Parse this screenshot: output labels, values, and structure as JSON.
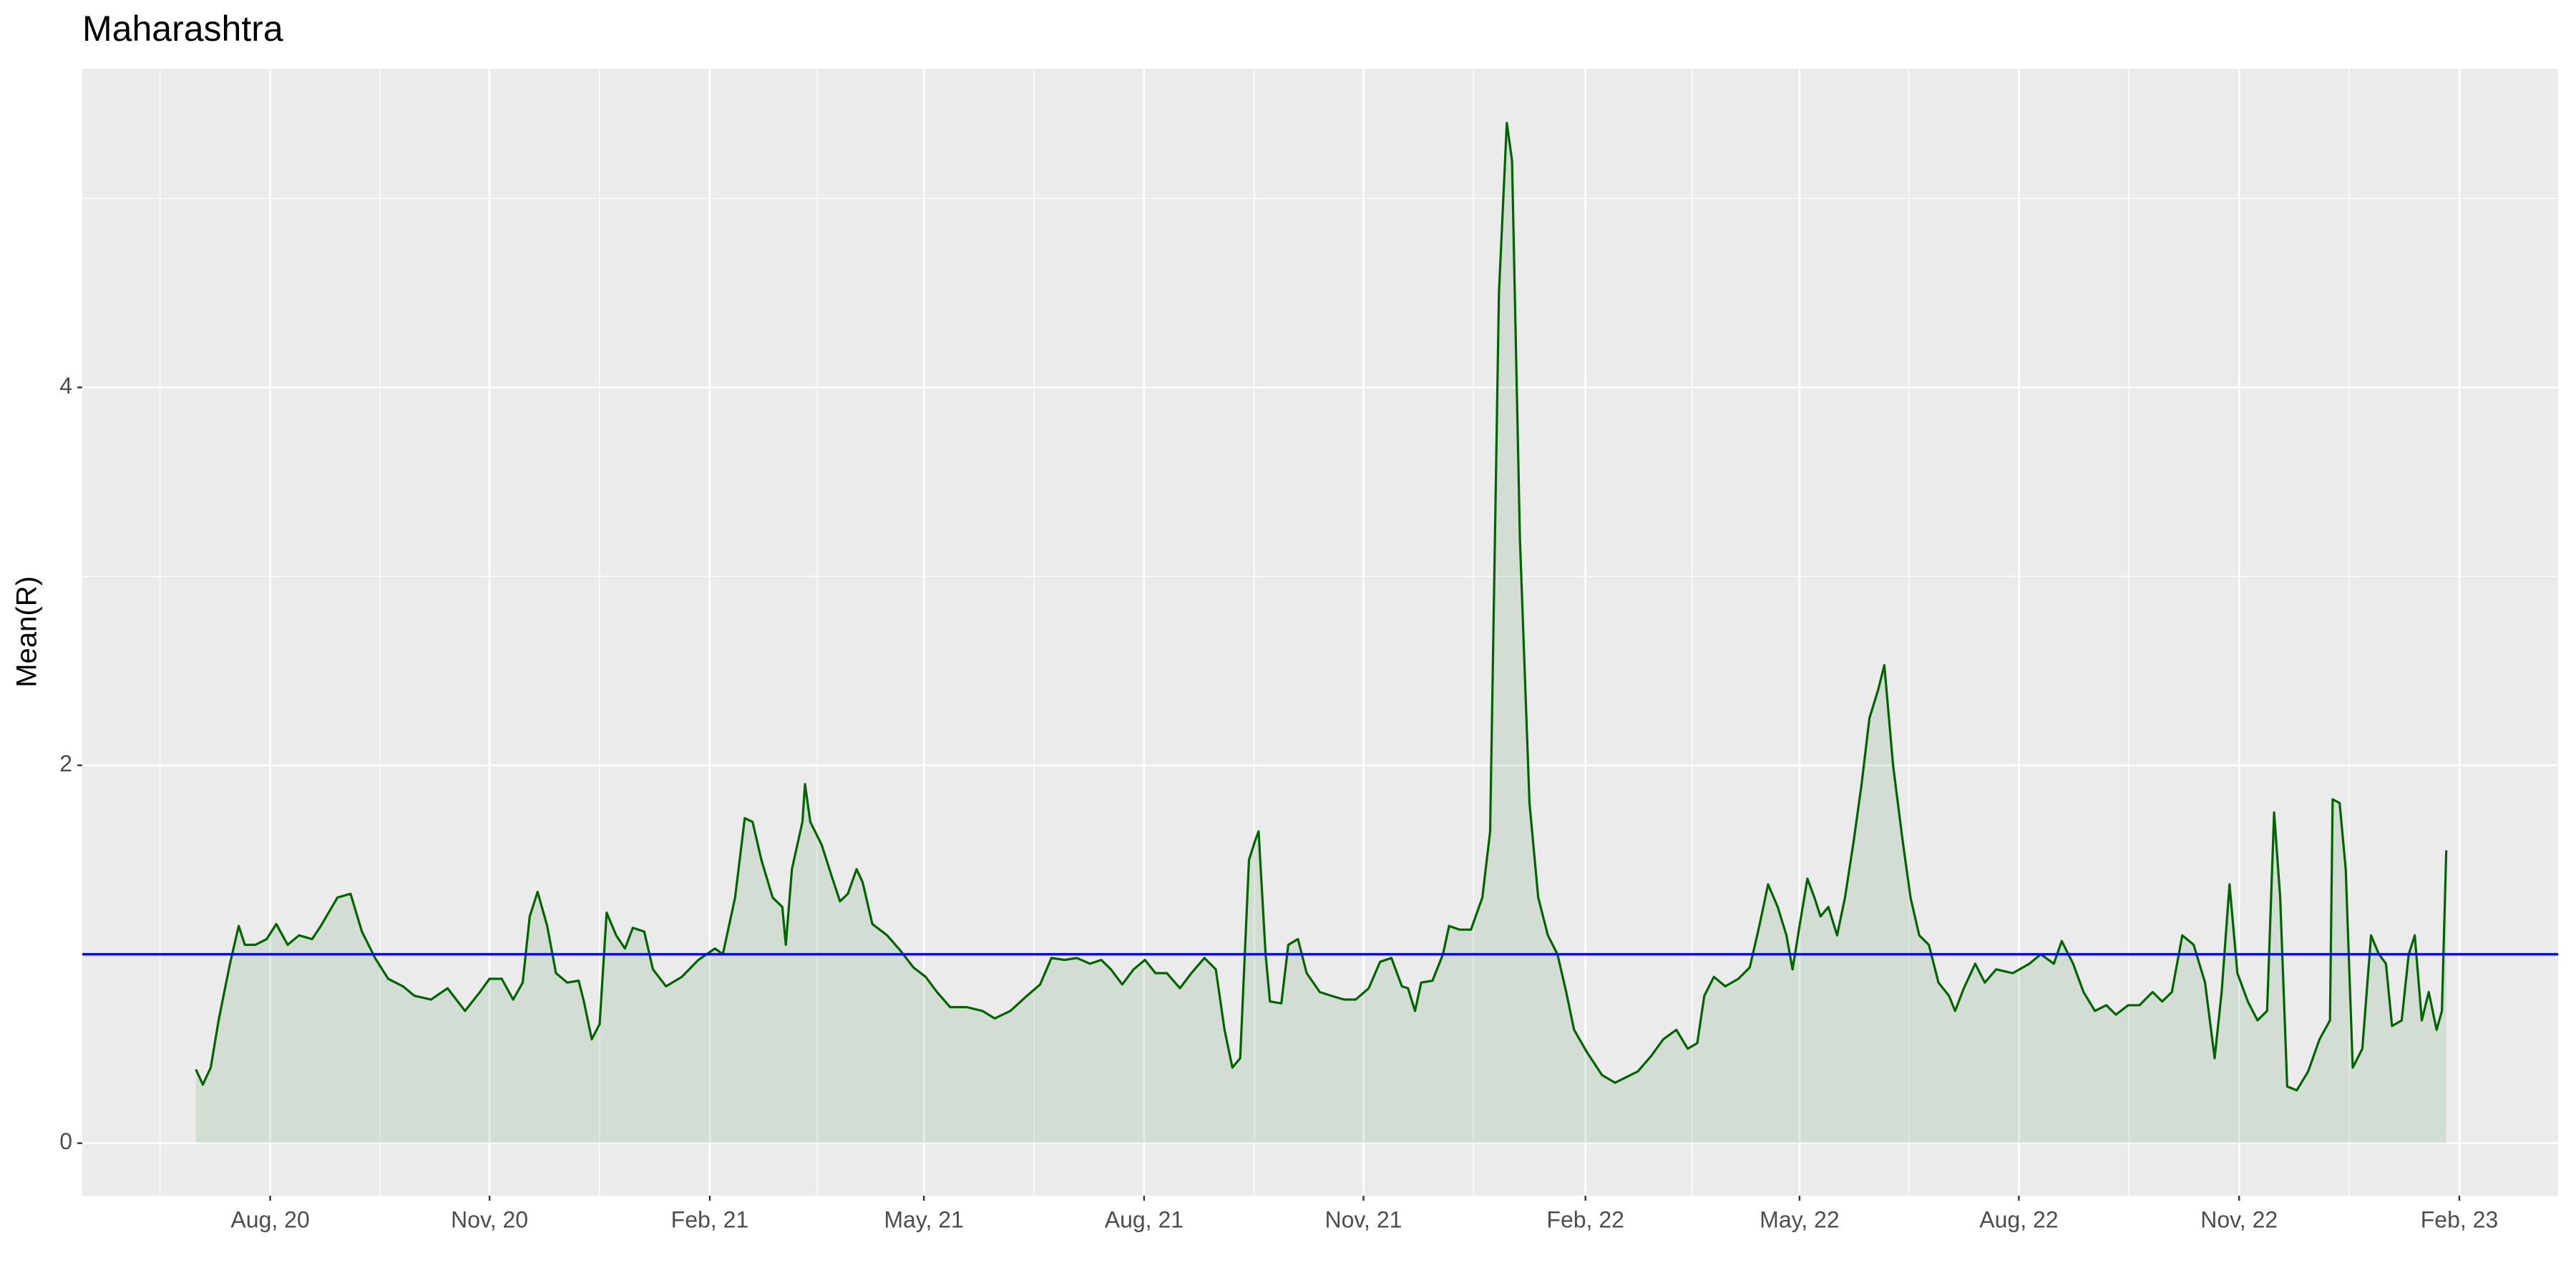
{
  "chart_data": {
    "type": "area",
    "title": "Maharashtra",
    "ylabel": "Mean(R)",
    "color": "#006400",
    "grid": true,
    "hline": {
      "value": 1,
      "color": "#0000ff"
    },
    "xlim": [
      2020.37,
      2023.203
    ],
    "ylim": [
      -0.278,
      5.687
    ],
    "xticks": [
      {
        "value": 2020.585,
        "label": "Aug, 20"
      },
      {
        "value": 2020.836,
        "label": "Nov, 20"
      },
      {
        "value": 2021.088,
        "label": "Feb, 21"
      },
      {
        "value": 2021.333,
        "label": "May, 21"
      },
      {
        "value": 2021.585,
        "label": "Aug, 21"
      },
      {
        "value": 2021.836,
        "label": "Nov, 21"
      },
      {
        "value": 2022.09,
        "label": "Feb, 22"
      },
      {
        "value": 2022.335,
        "label": "May, 22"
      },
      {
        "value": 2022.586,
        "label": "Aug, 22"
      },
      {
        "value": 2022.838,
        "label": "Nov, 22"
      },
      {
        "value": 2023.09,
        "label": "Feb, 23"
      }
    ],
    "xminor": [
      2020.459,
      2020.711,
      2020.962,
      2021.211,
      2021.459,
      2021.711,
      2021.962,
      2022.212,
      2022.46,
      2022.712,
      2022.964
    ],
    "yticks": [
      0,
      2,
      4
    ],
    "yminor": [
      1,
      3,
      5
    ],
    "x": [
      2020.5,
      2020.508,
      2020.517,
      2020.526,
      2020.539,
      2020.549,
      2020.556,
      2020.568,
      2020.581,
      2020.592,
      2020.605,
      2020.618,
      2020.633,
      2020.643,
      2020.662,
      2020.677,
      2020.69,
      2020.705,
      2020.72,
      2020.737,
      2020.75,
      2020.769,
      2020.788,
      2020.808,
      2020.825,
      2020.836,
      2020.85,
      2020.863,
      2020.874,
      2020.882,
      2020.891,
      2020.902,
      2020.912,
      2020.925,
      2020.938,
      2020.944,
      2020.953,
      2020.962,
      2020.97,
      2020.981,
      2020.991,
      2021.0,
      2021.013,
      2021.023,
      2021.038,
      2021.056,
      2021.075,
      2021.094,
      2021.103,
      2021.117,
      2021.128,
      2021.137,
      2021.147,
      2021.16,
      2021.171,
      2021.175,
      2021.182,
      2021.194,
      2021.197,
      2021.203,
      2021.216,
      2021.227,
      2021.237,
      2021.246,
      2021.256,
      2021.263,
      2021.274,
      2021.291,
      2021.306,
      2021.321,
      2021.335,
      2021.348,
      2021.363,
      2021.382,
      2021.4,
      2021.414,
      2021.432,
      2021.451,
      2021.466,
      2021.479,
      2021.494,
      2021.508,
      2021.523,
      2021.536,
      2021.547,
      2021.56,
      2021.573,
      2021.586,
      2021.598,
      2021.611,
      2021.626,
      2021.639,
      2021.654,
      2021.667,
      2021.677,
      2021.686,
      2021.695,
      2021.705,
      2021.712,
      2021.716,
      2021.724,
      2021.729,
      2021.742,
      2021.75,
      2021.761,
      2021.771,
      2021.786,
      2021.799,
      2021.814,
      2021.827,
      2021.842,
      2021.855,
      2021.868,
      2021.88,
      2021.887,
      2021.895,
      2021.902,
      2021.915,
      2021.927,
      2021.934,
      2021.946,
      2021.959,
      2021.972,
      2021.981,
      2021.991,
      2022.0,
      2022.006,
      2022.015,
      2022.026,
      2022.036,
      2022.047,
      2022.058,
      2022.068,
      2022.077,
      2022.092,
      2022.109,
      2022.124,
      2022.137,
      2022.15,
      2022.165,
      2022.179,
      2022.194,
      2022.207,
      2022.218,
      2022.226,
      2022.237,
      2022.25,
      2022.265,
      2022.278,
      2022.289,
      2022.299,
      2022.31,
      2022.32,
      2022.327,
      2022.335,
      2022.344,
      2022.352,
      2022.359,
      2022.368,
      2022.378,
      2022.387,
      2022.397,
      2022.406,
      2022.415,
      2022.425,
      2022.432,
      2022.442,
      2022.453,
      2022.462,
      2022.472,
      2022.483,
      2022.494,
      2022.506,
      2022.513,
      2022.523,
      2022.536,
      2022.547,
      2022.56,
      2022.579,
      2022.598,
      2022.611,
      2022.626,
      2022.635,
      2022.648,
      2022.66,
      2022.673,
      2022.686,
      2022.697,
      2022.711,
      2022.724,
      2022.739,
      2022.75,
      2022.761,
      2022.773,
      2022.786,
      2022.799,
      2022.81,
      2022.818,
      2022.827,
      2022.836,
      2022.848,
      2022.859,
      2022.87,
      2022.878,
      2022.885,
      2022.893,
      2022.904,
      2022.917,
      2022.93,
      2022.942,
      2022.945,
      2022.953,
      2022.96,
      2022.968,
      2022.979,
      2022.989,
      2022.998,
      2023.006,
      2023.013,
      2023.024,
      2023.032,
      2023.039,
      2023.047,
      2023.055,
      2023.064,
      2023.07,
      2023.075
    ],
    "values": [
      0.39,
      0.31,
      0.4,
      0.65,
      0.95,
      1.15,
      1.05,
      1.05,
      1.08,
      1.16,
      1.05,
      1.1,
      1.08,
      1.15,
      1.3,
      1.32,
      1.12,
      0.98,
      0.87,
      0.83,
      0.78,
      0.76,
      0.82,
      0.7,
      0.8,
      0.87,
      0.87,
      0.76,
      0.85,
      1.2,
      1.33,
      1.15,
      0.9,
      0.85,
      0.86,
      0.75,
      0.55,
      0.63,
      1.22,
      1.1,
      1.03,
      1.14,
      1.12,
      0.92,
      0.83,
      0.88,
      0.97,
      1.03,
      1.0,
      1.3,
      1.72,
      1.7,
      1.5,
      1.3,
      1.25,
      1.05,
      1.45,
      1.7,
      1.9,
      1.7,
      1.58,
      1.42,
      1.28,
      1.32,
      1.45,
      1.38,
      1.16,
      1.1,
      1.02,
      0.93,
      0.88,
      0.8,
      0.72,
      0.72,
      0.7,
      0.66,
      0.7,
      0.78,
      0.84,
      0.98,
      0.97,
      0.98,
      0.95,
      0.97,
      0.92,
      0.84,
      0.92,
      0.97,
      0.9,
      0.9,
      0.82,
      0.9,
      0.98,
      0.92,
      0.6,
      0.4,
      0.45,
      1.5,
      1.6,
      1.65,
      1.0,
      0.75,
      0.74,
      1.05,
      1.08,
      0.9,
      0.8,
      0.78,
      0.76,
      0.76,
      0.82,
      0.96,
      0.98,
      0.83,
      0.82,
      0.7,
      0.85,
      0.86,
      1.0,
      1.15,
      1.13,
      1.13,
      1.3,
      1.65,
      4.5,
      5.4,
      5.2,
      3.2,
      1.8,
      1.3,
      1.1,
      1.0,
      0.8,
      0.6,
      0.48,
      0.36,
      0.32,
      0.35,
      0.38,
      0.46,
      0.55,
      0.6,
      0.5,
      0.53,
      0.78,
      0.88,
      0.83,
      0.87,
      0.93,
      1.15,
      1.37,
      1.25,
      1.1,
      0.92,
      1.15,
      1.4,
      1.3,
      1.2,
      1.25,
      1.1,
      1.3,
      1.6,
      1.9,
      2.25,
      2.4,
      2.53,
      2.0,
      1.6,
      1.3,
      1.1,
      1.05,
      0.85,
      0.78,
      0.7,
      0.82,
      0.95,
      0.85,
      0.92,
      0.9,
      0.95,
      1.0,
      0.95,
      1.07,
      0.95,
      0.8,
      0.7,
      0.73,
      0.68,
      0.73,
      0.73,
      0.8,
      0.75,
      0.8,
      1.1,
      1.05,
      0.85,
      0.45,
      0.8,
      1.37,
      0.9,
      0.75,
      0.65,
      0.7,
      1.75,
      1.3,
      0.3,
      0.28,
      0.38,
      0.55,
      0.65,
      1.82,
      1.8,
      1.45,
      0.4,
      0.5,
      1.1,
      1.0,
      0.95,
      0.62,
      0.65,
      1.0,
      1.1,
      0.65,
      0.8,
      0.6,
      0.7,
      1.55
    ]
  }
}
